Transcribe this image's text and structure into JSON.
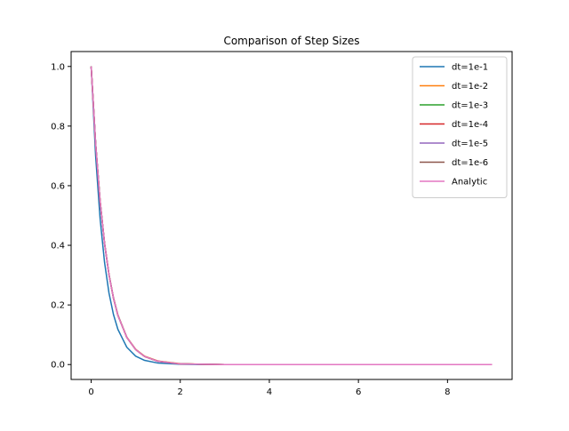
{
  "chart_data": {
    "type": "line",
    "title": "Comparison of Step Sizes",
    "xlabel": "",
    "ylabel": "",
    "xlim": [
      -0.45,
      9.45
    ],
    "ylim": [
      -0.05,
      1.05
    ],
    "xticks": [
      0,
      2,
      4,
      6,
      8
    ],
    "yticks": [
      0.0,
      0.2,
      0.4,
      0.6,
      0.8,
      1.0
    ],
    "xtick_labels": [
      "0",
      "2",
      "4",
      "6",
      "8"
    ],
    "ytick_labels": [
      "0.0",
      "0.2",
      "0.4",
      "0.6",
      "0.8",
      "1.0"
    ],
    "grid": false,
    "legend_position": "top-right",
    "x": [
      0,
      0.1,
      0.2,
      0.3,
      0.4,
      0.5,
      0.6,
      0.8,
      1.0,
      1.2,
      1.5,
      2.0,
      2.5,
      3.0,
      4.0,
      5.0,
      6.0,
      7.0,
      8.0,
      9.0
    ],
    "series": [
      {
        "name": "dt=1e-1",
        "color": "#1f77b4",
        "values": [
          1.0,
          0.7,
          0.49,
          0.343,
          0.24,
          0.168,
          0.118,
          0.058,
          0.028,
          0.014,
          0.005,
          0.001,
          0.0,
          0.0,
          0.0,
          0.0,
          0.0,
          0.0,
          0.0,
          0.0
        ]
      },
      {
        "name": "dt=1e-2",
        "color": "#ff7f0e",
        "values": [
          1.0,
          0.74,
          0.548,
          0.406,
          0.302,
          0.224,
          0.166,
          0.092,
          0.051,
          0.028,
          0.012,
          0.003,
          0.001,
          0.0,
          0.0,
          0.0,
          0.0,
          0.0,
          0.0,
          0.0
        ]
      },
      {
        "name": "dt=1e-3",
        "color": "#2ca02c",
        "values": [
          1.0,
          0.741,
          0.549,
          0.407,
          0.302,
          0.224,
          0.166,
          0.091,
          0.05,
          0.027,
          0.011,
          0.002,
          0.001,
          0.0,
          0.0,
          0.0,
          0.0,
          0.0,
          0.0,
          0.0
        ]
      },
      {
        "name": "dt=1e-4",
        "color": "#d62728",
        "values": [
          1.0,
          0.741,
          0.549,
          0.407,
          0.301,
          0.223,
          0.165,
          0.091,
          0.05,
          0.027,
          0.011,
          0.002,
          0.001,
          0.0,
          0.0,
          0.0,
          0.0,
          0.0,
          0.0,
          0.0
        ]
      },
      {
        "name": "dt=1e-5",
        "color": "#9467bd",
        "values": [
          1.0,
          0.741,
          0.549,
          0.407,
          0.301,
          0.223,
          0.165,
          0.091,
          0.05,
          0.027,
          0.011,
          0.002,
          0.001,
          0.0,
          0.0,
          0.0,
          0.0,
          0.0,
          0.0,
          0.0
        ]
      },
      {
        "name": "dt=1e-6",
        "color": "#8c564b",
        "values": [
          1.0,
          0.741,
          0.549,
          0.407,
          0.301,
          0.223,
          0.165,
          0.091,
          0.05,
          0.027,
          0.011,
          0.002,
          0.001,
          0.0,
          0.0,
          0.0,
          0.0,
          0.0,
          0.0,
          0.0
        ]
      },
      {
        "name": "Analytic",
        "color": "#e377c2",
        "values": [
          1.0,
          0.741,
          0.549,
          0.407,
          0.301,
          0.223,
          0.165,
          0.091,
          0.05,
          0.027,
          0.011,
          0.002,
          0.001,
          0.0,
          0.0,
          0.0,
          0.0,
          0.0,
          0.0,
          0.0
        ]
      }
    ]
  }
}
